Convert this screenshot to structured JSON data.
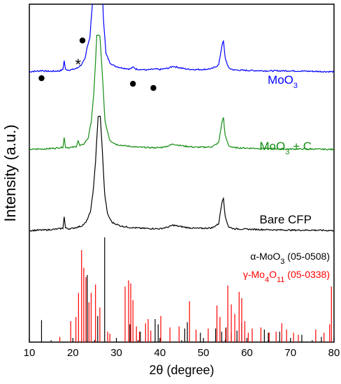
{
  "chart_data": {
    "type": "line",
    "xlabel": "2θ (degree)",
    "ylabel": "Intensity (a.u.)",
    "xlim": [
      10,
      80
    ],
    "xticks": [
      10,
      20,
      30,
      40,
      50,
      60,
      70,
      80
    ],
    "series": [
      {
        "name": "MoO3",
        "label_main": "MoO",
        "label_sub": "3",
        "label_rest": "",
        "color": "#0000ff",
        "baseline": 0.8,
        "points": [
          [
            10,
            0.0
          ],
          [
            11,
            0.01
          ],
          [
            12,
            0.015
          ],
          [
            13,
            0.03
          ],
          [
            13.5,
            0.015
          ],
          [
            15,
            0.01
          ],
          [
            16,
            0.015
          ],
          [
            17,
            0.02
          ],
          [
            17.7,
            0.05
          ],
          [
            18,
            0.24
          ],
          [
            18.3,
            0.05
          ],
          [
            19,
            0.04
          ],
          [
            20,
            0.05
          ],
          [
            21,
            0.08
          ],
          [
            21.5,
            0.12
          ],
          [
            22.0,
            0.16
          ],
          [
            22.8,
            0.28
          ],
          [
            23.3,
            0.55
          ],
          [
            23.9,
            0.75
          ],
          [
            24.5,
            1.5
          ],
          [
            25,
            2.5
          ],
          [
            25.8,
            2.5
          ],
          [
            26.5,
            2.5
          ],
          [
            27,
            1.2
          ],
          [
            27.6,
            0.4
          ],
          [
            28.5,
            0.2
          ],
          [
            29.5,
            0.13
          ],
          [
            31,
            0.09
          ],
          [
            33,
            0.06
          ],
          [
            33.9,
            0.1
          ],
          [
            34.5,
            0.06
          ],
          [
            37,
            0.04
          ],
          [
            39,
            0.06
          ],
          [
            40,
            0.05
          ],
          [
            42,
            0.08
          ],
          [
            43,
            0.12
          ],
          [
            44,
            0.1
          ],
          [
            46,
            0.06
          ],
          [
            48,
            0.05
          ],
          [
            50,
            0.05
          ],
          [
            52,
            0.07
          ],
          [
            53.5,
            0.15
          ],
          [
            54.3,
            0.6
          ],
          [
            54.6,
            0.67
          ],
          [
            55,
            0.3
          ],
          [
            55.8,
            0.08
          ],
          [
            57,
            0.04
          ],
          [
            60,
            0.03
          ],
          [
            65,
            0.02
          ],
          [
            70,
            0.02
          ],
          [
            75,
            0.01
          ],
          [
            80,
            0.0
          ]
        ],
        "markers": [
          [
            12.8,
            "dot"
          ],
          [
            21.2,
            "star"
          ],
          [
            22.2,
            "dot"
          ],
          [
            33.8,
            "dot"
          ],
          [
            38.5,
            "dot"
          ]
        ]
      },
      {
        "name": "MoO3 + C",
        "label_main": "MoO",
        "label_sub": "3",
        "label_rest": " + C",
        "color": "#138d13",
        "baseline": 0.57,
        "points": [
          [
            10,
            0.0
          ],
          [
            12,
            0.01
          ],
          [
            14,
            0.015
          ],
          [
            16,
            0.03
          ],
          [
            17.7,
            0.05
          ],
          [
            18,
            0.26
          ],
          [
            18.3,
            0.05
          ],
          [
            19,
            0.04
          ],
          [
            20,
            0.05
          ],
          [
            20.8,
            0.07
          ],
          [
            21.2,
            0.19
          ],
          [
            21.6,
            0.08
          ],
          [
            22.5,
            0.12
          ],
          [
            23.5,
            0.25
          ],
          [
            24.2,
            0.6
          ],
          [
            24.8,
            1.2
          ],
          [
            25.5,
            2.5
          ],
          [
            26.2,
            2.5
          ],
          [
            26.8,
            1.6
          ],
          [
            27.4,
            0.6
          ],
          [
            28.5,
            0.2
          ],
          [
            30,
            0.11
          ],
          [
            32,
            0.08
          ],
          [
            35,
            0.05
          ],
          [
            38,
            0.04
          ],
          [
            40,
            0.04
          ],
          [
            42,
            0.08
          ],
          [
            43,
            0.12
          ],
          [
            44,
            0.1
          ],
          [
            46,
            0.07
          ],
          [
            48,
            0.05
          ],
          [
            50,
            0.05
          ],
          [
            52,
            0.06
          ],
          [
            53.5,
            0.15
          ],
          [
            54.3,
            0.62
          ],
          [
            54.6,
            0.7
          ],
          [
            55,
            0.3
          ],
          [
            55.8,
            0.08
          ],
          [
            57,
            0.04
          ],
          [
            60,
            0.03
          ],
          [
            65,
            0.02
          ],
          [
            70,
            0.01
          ],
          [
            75,
            0.01
          ],
          [
            80,
            0.0
          ]
        ],
        "markers": []
      },
      {
        "name": "Bare CFP",
        "label_main": "Bare CFP",
        "label_sub": "",
        "label_rest": "",
        "color": "#000000",
        "baseline": 0.33,
        "points": [
          [
            10,
            0.0
          ],
          [
            12,
            0.01
          ],
          [
            14,
            0.015
          ],
          [
            16,
            0.03
          ],
          [
            17.7,
            0.05
          ],
          [
            18,
            0.3
          ],
          [
            18.3,
            0.06
          ],
          [
            19,
            0.04
          ],
          [
            20,
            0.05
          ],
          [
            22,
            0.1
          ],
          [
            23,
            0.18
          ],
          [
            24,
            0.4
          ],
          [
            24.6,
            0.8
          ],
          [
            25.2,
            1.5
          ],
          [
            25.8,
            2.5
          ],
          [
            26.3,
            2.5
          ],
          [
            26.8,
            1.7
          ],
          [
            27.3,
            0.8
          ],
          [
            28,
            0.35
          ],
          [
            29,
            0.18
          ],
          [
            31,
            0.1
          ],
          [
            33,
            0.07
          ],
          [
            36,
            0.05
          ],
          [
            40,
            0.04
          ],
          [
            42,
            0.08
          ],
          [
            43,
            0.12
          ],
          [
            44,
            0.1
          ],
          [
            46,
            0.07
          ],
          [
            48,
            0.05
          ],
          [
            50,
            0.05
          ],
          [
            52,
            0.06
          ],
          [
            53.5,
            0.15
          ],
          [
            54.3,
            0.65
          ],
          [
            54.6,
            0.72
          ],
          [
            55,
            0.3
          ],
          [
            55.8,
            0.08
          ],
          [
            57,
            0.04
          ],
          [
            60,
            0.03
          ],
          [
            65,
            0.02
          ],
          [
            70,
            0.01
          ],
          [
            75,
            0.01
          ],
          [
            80,
            0.0
          ]
        ],
        "markers": []
      }
    ],
    "reference": {
      "baseline": 0.0,
      "sets": [
        {
          "name": "α-MoO3 (05-0508)",
          "label_main": "α-MoO",
          "label_sub": "3",
          "label_rest": " (05-0508)",
          "color": "#000000",
          "lines": [
            [
              12.8,
              0.21
            ],
            [
              23.3,
              0.64
            ],
            [
              25.7,
              0.25
            ],
            [
              27.3,
              1.0
            ],
            [
              33.1,
              0.17
            ],
            [
              35.5,
              0.1
            ],
            [
              38.9,
              0.22
            ],
            [
              39.6,
              0.17
            ],
            [
              45.7,
              0.13
            ],
            [
              46.3,
              0.19
            ],
            [
              49.3,
              0.09
            ],
            [
              52.8,
              0.13
            ],
            [
              54.2,
              0.1
            ],
            [
              55.2,
              0.14
            ],
            [
              56.4,
              0.09
            ],
            [
              57.7,
              0.11
            ],
            [
              58.8,
              0.19
            ],
            [
              64.0,
              0.12
            ],
            [
              64.9,
              0.09
            ],
            [
              67.5,
              0.1
            ],
            [
              72.6,
              0.07
            ],
            [
              77.1,
              0.05
            ]
          ]
        },
        {
          "name": "γ-Mo4O11 (05-0338)",
          "label_main": "γ-Mo",
          "label_sub": "4",
          "label_rest": "O",
          "label_sub2": "11",
          "label_tail": " (05-0338)",
          "color": "#ff0000",
          "lines": [
            [
              17.0,
              0.05
            ],
            [
              19.5,
              0.2
            ],
            [
              20.7,
              0.24
            ],
            [
              21.3,
              0.47
            ],
            [
              22.0,
              0.88
            ],
            [
              22.5,
              0.71
            ],
            [
              23.0,
              0.62
            ],
            [
              23.7,
              0.38
            ],
            [
              24.2,
              0.47
            ],
            [
              25.2,
              0.55
            ],
            [
              26.2,
              0.33
            ],
            [
              28.0,
              0.1
            ],
            [
              28.5,
              0.08
            ],
            [
              32.0,
              0.53
            ],
            [
              32.8,
              0.59
            ],
            [
              33.3,
              0.56
            ],
            [
              33.8,
              0.4
            ],
            [
              34.6,
              0.15
            ],
            [
              35.3,
              0.1
            ],
            [
              36.7,
              0.18
            ],
            [
              37.3,
              0.22
            ],
            [
              37.9,
              0.11
            ],
            [
              40.2,
              0.25
            ],
            [
              42.3,
              0.14
            ],
            [
              44.4,
              0.15
            ],
            [
              46.8,
              0.39
            ],
            [
              48.3,
              0.12
            ],
            [
              51.1,
              0.13
            ],
            [
              53.1,
              0.35
            ],
            [
              53.8,
              0.24
            ],
            [
              55.1,
              0.13
            ],
            [
              55.6,
              0.54
            ],
            [
              56.4,
              0.36
            ],
            [
              57.2,
              0.27
            ],
            [
              58.2,
              0.48
            ],
            [
              58.8,
              0.42
            ],
            [
              59.5,
              0.2
            ],
            [
              60.3,
              0.09
            ],
            [
              61.2,
              0.13
            ],
            [
              63.2,
              0.14
            ],
            [
              65.1,
              0.09
            ],
            [
              66.7,
              0.1
            ],
            [
              68.0,
              0.18
            ],
            [
              69.1,
              0.12
            ],
            [
              70.7,
              0.09
            ],
            [
              71.8,
              0.07
            ],
            [
              75.8,
              0.12
            ],
            [
              77.7,
              0.09
            ],
            [
              79.0,
              0.17
            ],
            [
              79.4,
              0.53
            ]
          ]
        }
      ]
    }
  },
  "labels": {
    "xlabel": "2θ (degree)",
    "ylabel": "Intensity (a.u.)"
  }
}
